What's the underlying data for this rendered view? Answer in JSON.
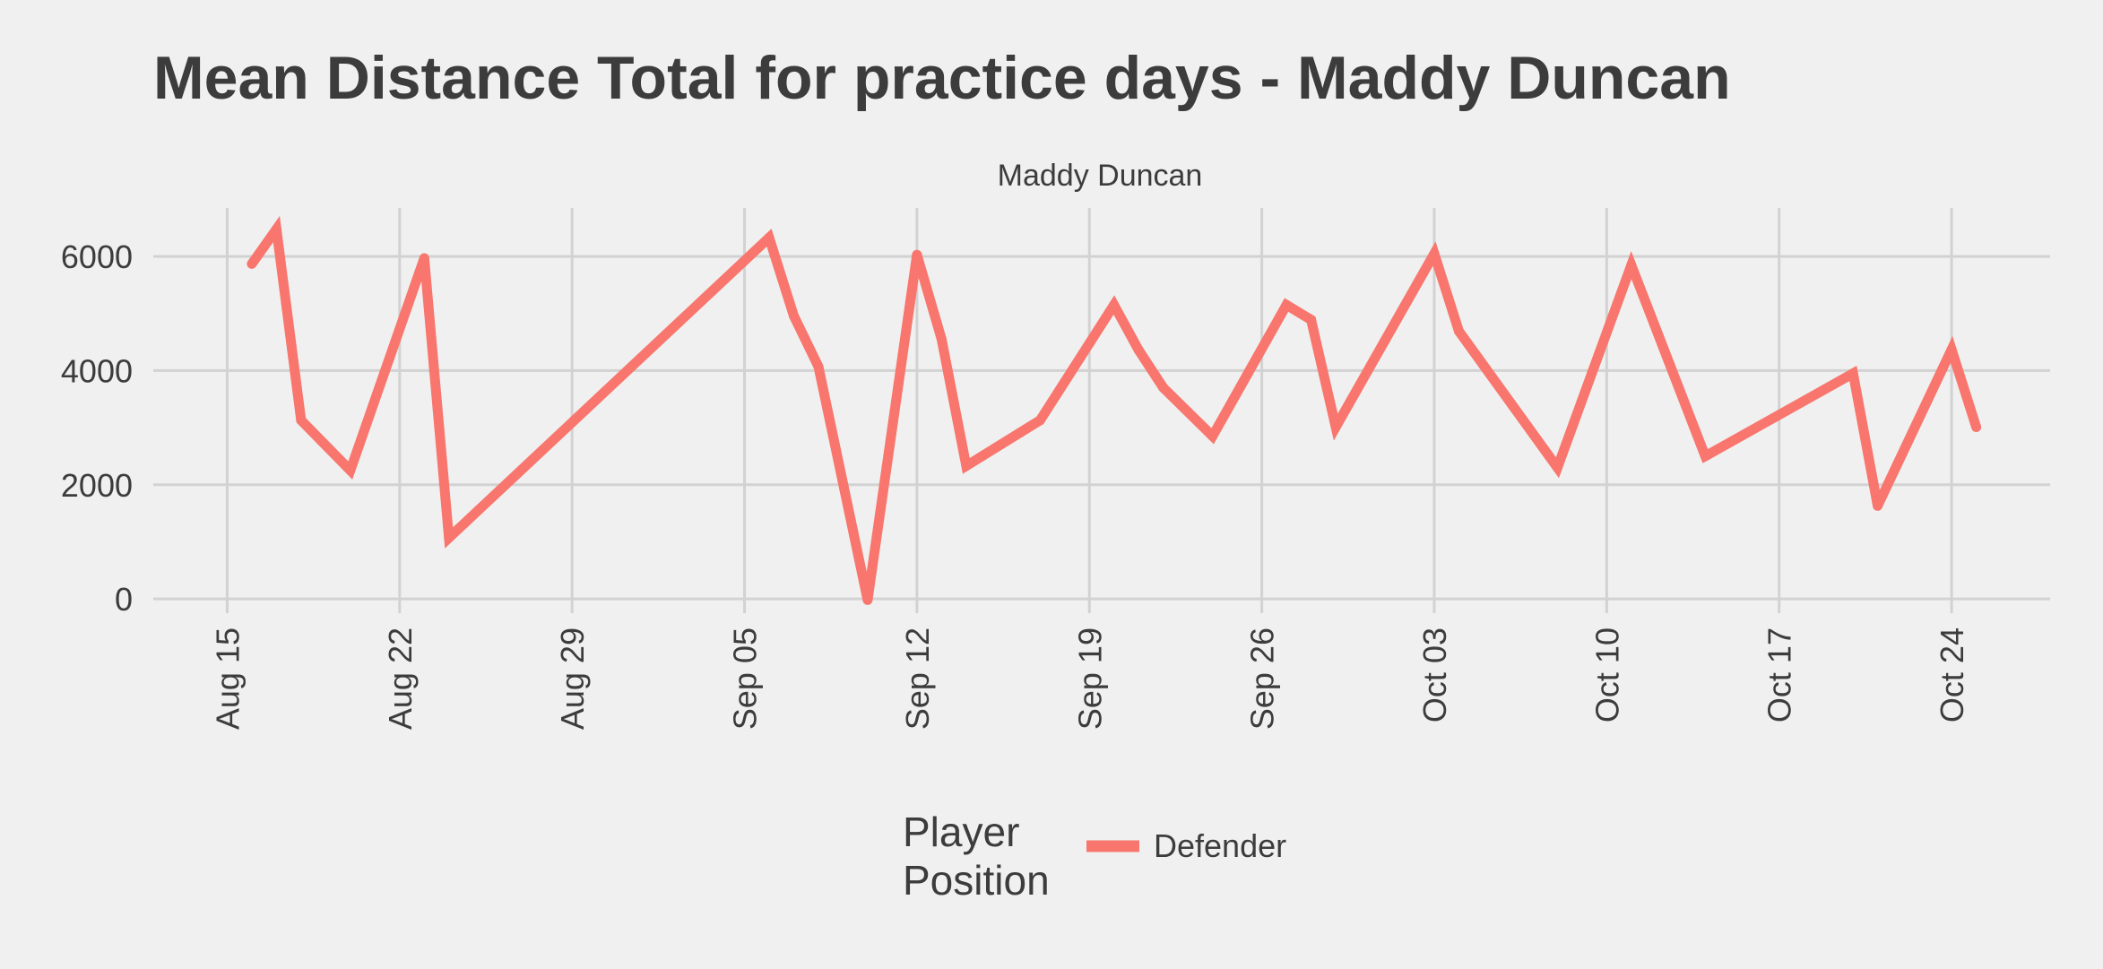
{
  "chart_data": {
    "type": "line",
    "title": "Mean Distance Total for practice days -  Maddy Duncan",
    "subtitle": "Maddy Duncan",
    "xlabel": "",
    "ylabel": "",
    "x_ticks": [
      {
        "date": "2021-08-15",
        "label": "Aug 15"
      },
      {
        "date": "2021-08-22",
        "label": "Aug 22"
      },
      {
        "date": "2021-08-29",
        "label": "Aug 29"
      },
      {
        "date": "2021-09-05",
        "label": "Sep 05"
      },
      {
        "date": "2021-09-12",
        "label": "Sep 12"
      },
      {
        "date": "2021-09-19",
        "label": "Sep 19"
      },
      {
        "date": "2021-09-26",
        "label": "Sep 26"
      },
      {
        "date": "2021-10-03",
        "label": "Oct 03"
      },
      {
        "date": "2021-10-10",
        "label": "Oct 10"
      },
      {
        "date": "2021-10-17",
        "label": "Oct 17"
      },
      {
        "date": "2021-10-24",
        "label": "Oct 24"
      }
    ],
    "y_ticks": [
      0,
      2000,
      4000,
      6000
    ],
    "xlim": [
      "2021-08-12",
      "2021-10-28"
    ],
    "ylim": [
      -250,
      6850
    ],
    "grid": true,
    "legend_position": "bottom",
    "legend_title": "Player\nPosition",
    "series": [
      {
        "name": "Defender",
        "color": "#f8766d",
        "points": [
          {
            "x": "2021-08-16",
            "y": 5870
          },
          {
            "x": "2021-08-17",
            "y": 6480
          },
          {
            "x": "2021-08-18",
            "y": 3130
          },
          {
            "x": "2021-08-20",
            "y": 2250
          },
          {
            "x": "2021-08-23",
            "y": 5970
          },
          {
            "x": "2021-08-24",
            "y": 1070
          },
          {
            "x": "2021-09-06",
            "y": 6330
          },
          {
            "x": "2021-09-07",
            "y": 4960
          },
          {
            "x": "2021-09-08",
            "y": 4070
          },
          {
            "x": "2021-09-10",
            "y": -20
          },
          {
            "x": "2021-09-12",
            "y": 6030
          },
          {
            "x": "2021-09-13",
            "y": 4550
          },
          {
            "x": "2021-09-14",
            "y": 2330
          },
          {
            "x": "2021-09-17",
            "y": 3130
          },
          {
            "x": "2021-09-20",
            "y": 5150
          },
          {
            "x": "2021-09-21",
            "y": 4360
          },
          {
            "x": "2021-09-22",
            "y": 3700
          },
          {
            "x": "2021-09-24",
            "y": 2850
          },
          {
            "x": "2021-09-27",
            "y": 5150
          },
          {
            "x": "2021-09-28",
            "y": 4890
          },
          {
            "x": "2021-09-29",
            "y": 3010
          },
          {
            "x": "2021-10-03",
            "y": 6050
          },
          {
            "x": "2021-10-04",
            "y": 4690
          },
          {
            "x": "2021-10-08",
            "y": 2300
          },
          {
            "x": "2021-10-11",
            "y": 5850
          },
          {
            "x": "2021-10-14",
            "y": 2500
          },
          {
            "x": "2021-10-20",
            "y": 3950
          },
          {
            "x": "2021-10-21",
            "y": 1630
          },
          {
            "x": "2021-10-24",
            "y": 4370
          },
          {
            "x": "2021-10-25",
            "y": 3010
          }
        ]
      }
    ]
  }
}
